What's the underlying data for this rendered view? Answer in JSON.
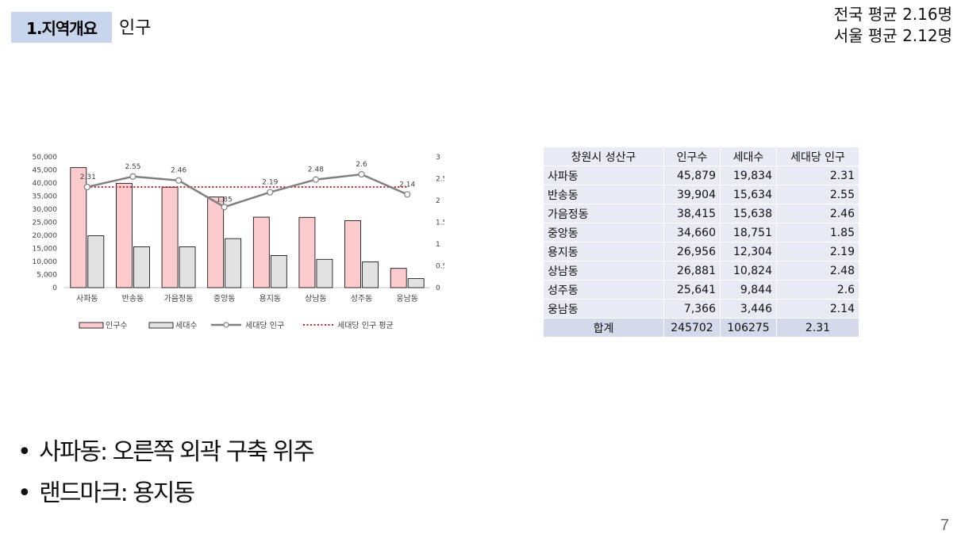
{
  "header": {
    "section": "1.지역개요",
    "subtitle": "인구",
    "national_avg": "전국 평균 2.16명",
    "seoul_avg": "서울 평균 2.12명"
  },
  "chart_data": {
    "type": "bar",
    "categories": [
      "사파동",
      "반송동",
      "가음정동",
      "중앙동",
      "용지동",
      "상남동",
      "성주동",
      "웅남동"
    ],
    "series": [
      {
        "name": "인구수",
        "type": "bar",
        "axis": "left",
        "color": "#fbcbcd",
        "values": [
          45879,
          39904,
          38415,
          34660,
          26956,
          26881,
          25641,
          7366
        ]
      },
      {
        "name": "세대수",
        "type": "bar",
        "axis": "left",
        "color": "#e2e2e2",
        "values": [
          19834,
          15634,
          15638,
          18751,
          12304,
          10824,
          9844,
          3446
        ]
      },
      {
        "name": "세대당 인구",
        "type": "line",
        "axis": "right",
        "color": "#808080",
        "values": [
          2.31,
          2.55,
          2.46,
          1.85,
          2.19,
          2.48,
          2.6,
          2.14
        ],
        "labels": [
          "2.31",
          "2.55",
          "2.46",
          "1.85",
          "2.19",
          "2.48",
          "2.6",
          "2.14"
        ]
      },
      {
        "name": "세대당 인구 평균",
        "type": "line-dotted",
        "axis": "right",
        "color": "#c0272d",
        "values": [
          2.31,
          2.31,
          2.31,
          2.31,
          2.31,
          2.31,
          2.31,
          2.31
        ]
      }
    ],
    "y_left": {
      "min": 0,
      "max": 50000,
      "step": 5000,
      "tick_labels": [
        "0",
        "5,000",
        "10,000",
        "15,000",
        "20,000",
        "25,000",
        "30,000",
        "35,000",
        "40,000",
        "45,000",
        "50,000"
      ]
    },
    "y_right": {
      "min": 0,
      "max": 3,
      "step": 0.5,
      "tick_labels": [
        "0",
        "0.5",
        "1",
        "1.5",
        "2",
        "2.5",
        "3"
      ]
    },
    "legend_position": "bottom",
    "grid": false
  },
  "table": {
    "headers": [
      "창원시 성산구",
      "인구수",
      "세대수",
      "세대당 인구"
    ],
    "rows": [
      [
        "사파동",
        "45,879",
        "19,834",
        "2.31"
      ],
      [
        "반송동",
        "39,904",
        "15,634",
        "2.55"
      ],
      [
        "가음정동",
        "38,415",
        "15,638",
        "2.46"
      ],
      [
        "중앙동",
        "34,660",
        "18,751",
        "1.85"
      ],
      [
        "용지동",
        "26,956",
        "12,304",
        "2.19"
      ],
      [
        "상남동",
        "26,881",
        "10,824",
        "2.48"
      ],
      [
        "성주동",
        "25,641",
        "9,844",
        "2.6"
      ],
      [
        "웅남동",
        "7,366",
        "3,446",
        "2.14"
      ]
    ],
    "total": [
      "합계",
      "245702",
      "106275",
      "2.31"
    ]
  },
  "bullets": [
    "사파동: 오른쪽 외곽 구축 위주",
    "랜드마크: 용지동"
  ],
  "page_number": "7"
}
